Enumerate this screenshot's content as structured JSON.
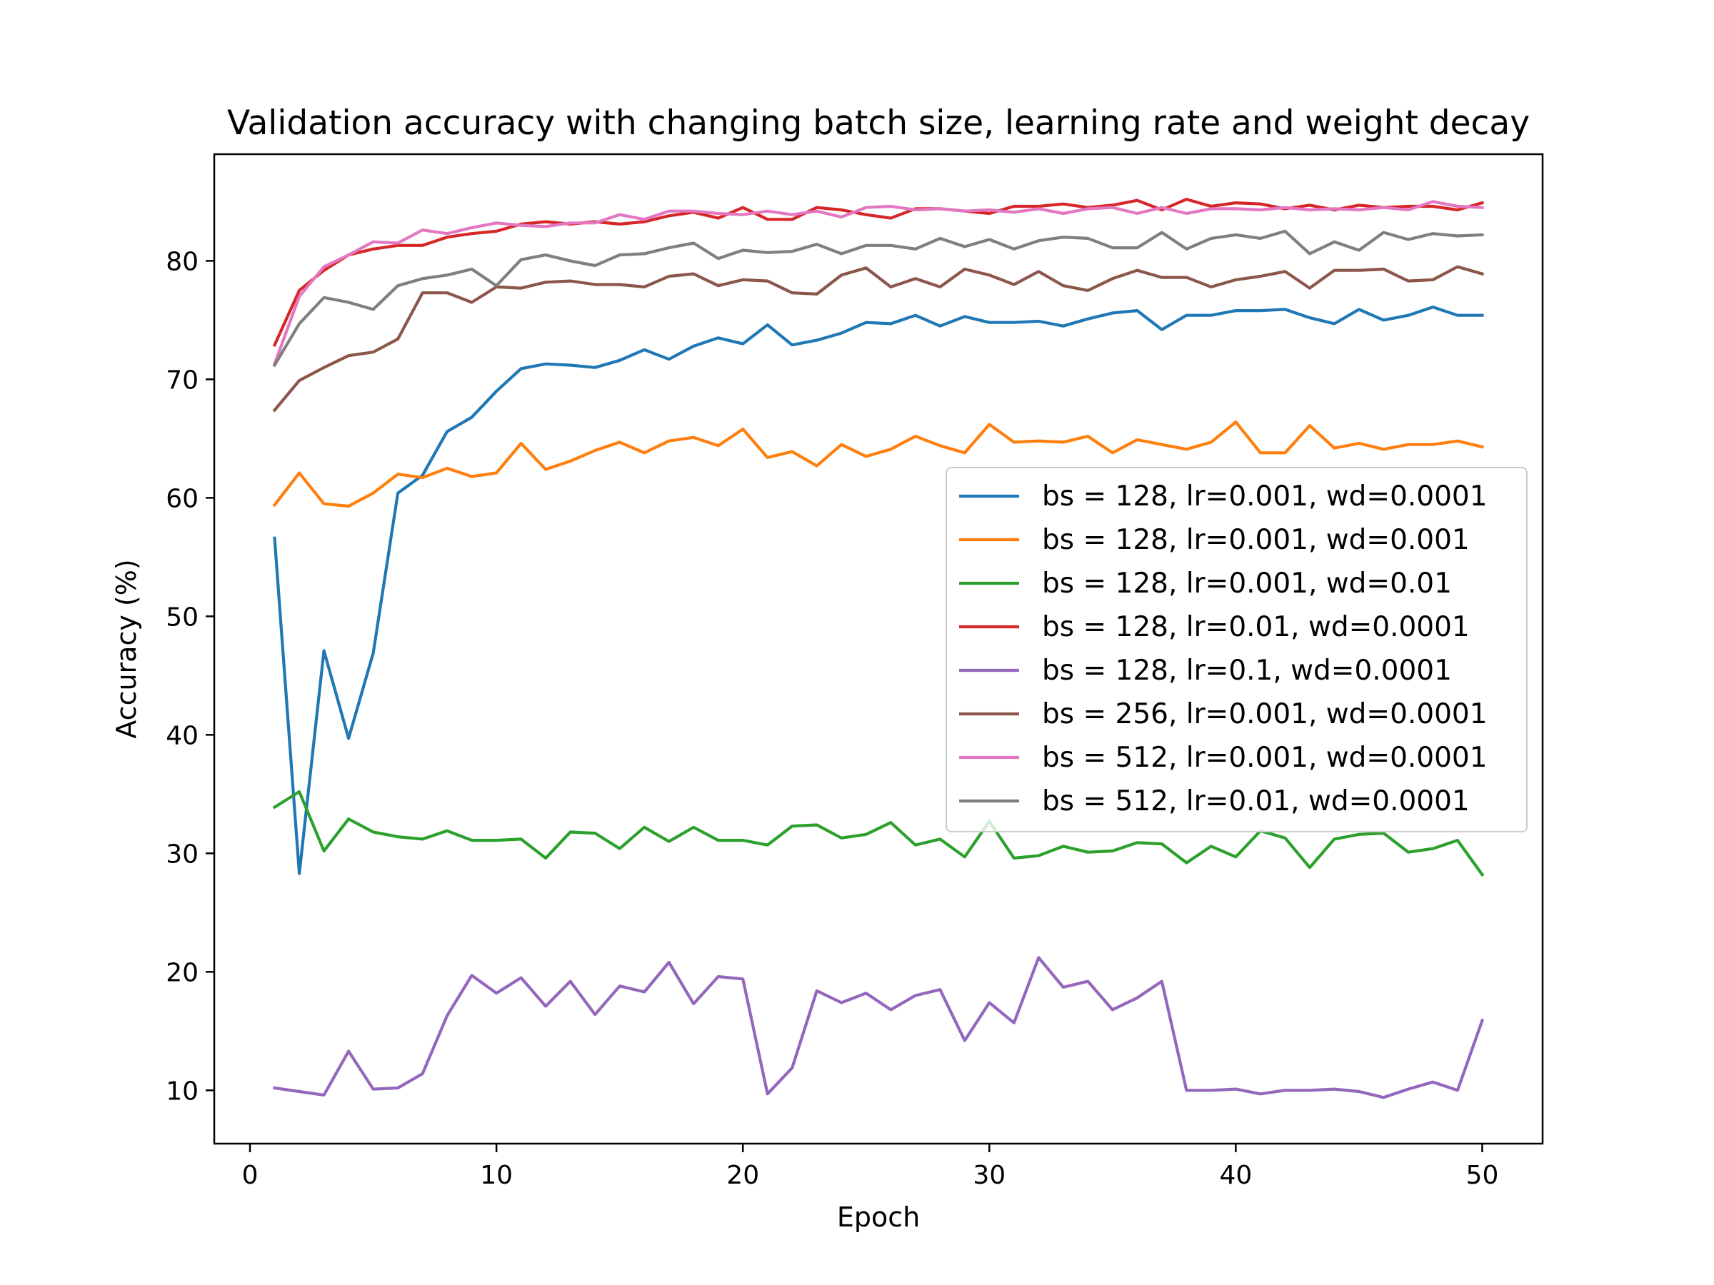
{
  "chart_data": {
    "type": "line",
    "title": "Validation accuracy with changing batch size, learning rate and weight decay",
    "xlabel": "Epoch",
    "ylabel": "Accuracy (%)",
    "xlim": [
      -1.45,
      52.45
    ],
    "ylim": [
      5.5,
      89.0
    ],
    "xticks": [
      0,
      10,
      20,
      30,
      40,
      50
    ],
    "yticks": [
      10,
      20,
      30,
      40,
      50,
      60,
      70,
      80
    ],
    "grid": false,
    "legend_position": "center-right",
    "x": [
      1,
      2,
      3,
      4,
      5,
      6,
      7,
      8,
      9,
      10,
      11,
      12,
      13,
      14,
      15,
      16,
      17,
      18,
      19,
      20,
      21,
      22,
      23,
      24,
      25,
      26,
      27,
      28,
      29,
      30,
      31,
      32,
      33,
      34,
      35,
      36,
      37,
      38,
      39,
      40,
      41,
      42,
      43,
      44,
      45,
      46,
      47,
      48,
      49,
      50
    ],
    "series": [
      {
        "name": "bs = 128, lr=0.001, wd=0.0001",
        "color": "#1f77b4",
        "values": [
          56.6,
          28.3,
          47.1,
          39.7,
          46.9,
          60.4,
          61.9,
          65.6,
          66.8,
          69.0,
          70.9,
          71.3,
          71.2,
          71.0,
          71.6,
          72.5,
          71.7,
          72.8,
          73.5,
          73.0,
          74.6,
          72.9,
          73.3,
          73.9,
          74.8,
          74.7,
          75.4,
          74.5,
          75.3,
          74.8,
          74.8,
          74.9,
          74.5,
          75.1,
          75.6,
          75.8,
          74.2,
          75.4,
          75.4,
          75.8,
          75.8,
          75.9,
          75.2,
          74.7,
          75.9,
          75.0,
          75.4,
          76.1,
          75.4,
          75.4
        ]
      },
      {
        "name": "bs = 128, lr=0.001, wd=0.001",
        "color": "#ff7f0e",
        "values": [
          59.4,
          62.1,
          59.5,
          59.3,
          60.4,
          62.0,
          61.7,
          62.5,
          61.8,
          62.1,
          64.6,
          62.4,
          63.1,
          64.0,
          64.7,
          63.8,
          64.8,
          65.1,
          64.4,
          65.8,
          63.4,
          63.9,
          62.7,
          64.5,
          63.5,
          64.1,
          65.2,
          64.4,
          63.8,
          66.2,
          64.7,
          64.8,
          64.7,
          65.2,
          63.8,
          64.9,
          64.5,
          64.1,
          64.7,
          66.4,
          63.8,
          63.8,
          66.1,
          64.2,
          64.6,
          64.1,
          64.5,
          64.5,
          64.8,
          64.3
        ]
      },
      {
        "name": "bs = 128, lr=0.001, wd=0.01",
        "color": "#2ca02c",
        "values": [
          33.9,
          35.2,
          30.2,
          32.9,
          31.8,
          31.4,
          31.2,
          31.9,
          31.1,
          31.1,
          31.2,
          29.6,
          31.8,
          31.7,
          30.4,
          32.2,
          31.0,
          32.2,
          31.1,
          31.1,
          30.7,
          32.3,
          32.4,
          31.3,
          31.6,
          32.6,
          30.7,
          31.2,
          29.7,
          32.7,
          29.6,
          29.8,
          30.6,
          30.1,
          30.2,
          30.9,
          30.8,
          29.2,
          30.6,
          29.7,
          31.9,
          31.3,
          28.8,
          31.2,
          31.6,
          31.7,
          30.1,
          30.4,
          31.1,
          28.2
        ]
      },
      {
        "name": "bs = 128, lr=0.01, wd=0.0001",
        "color": "#d62728",
        "values": [
          72.9,
          77.5,
          79.2,
          80.5,
          81.0,
          81.3,
          81.3,
          82.0,
          82.3,
          82.5,
          83.1,
          83.3,
          83.1,
          83.3,
          83.1,
          83.3,
          83.8,
          84.1,
          83.6,
          84.5,
          83.5,
          83.5,
          84.5,
          84.3,
          83.9,
          83.6,
          84.4,
          84.4,
          84.2,
          84.0,
          84.6,
          84.6,
          84.8,
          84.5,
          84.7,
          85.1,
          84.3,
          85.2,
          84.6,
          84.9,
          84.8,
          84.4,
          84.7,
          84.3,
          84.7,
          84.5,
          84.6,
          84.6,
          84.3,
          84.9
        ]
      },
      {
        "name": "bs = 128, lr=0.1, wd=0.0001",
        "color": "#9467bd",
        "values": [
          10.2,
          9.9,
          9.6,
          13.3,
          10.1,
          10.2,
          11.4,
          16.3,
          19.7,
          18.2,
          19.5,
          17.1,
          19.2,
          16.4,
          18.8,
          18.3,
          20.8,
          17.3,
          19.6,
          19.4,
          9.7,
          11.9,
          18.4,
          17.4,
          18.2,
          16.8,
          18.0,
          18.5,
          14.2,
          17.4,
          15.7,
          21.2,
          18.7,
          19.2,
          16.8,
          17.8,
          19.2,
          10.0,
          10.0,
          10.1,
          9.7,
          10.0,
          10.0,
          10.1,
          9.9,
          9.4,
          10.1,
          10.7,
          10.0,
          15.9
        ]
      },
      {
        "name": "bs = 256, lr=0.001, wd=0.0001",
        "color": "#8c564b",
        "values": [
          67.4,
          69.9,
          71.0,
          72.0,
          72.3,
          73.4,
          77.3,
          77.3,
          76.5,
          77.8,
          77.7,
          78.2,
          78.3,
          78.0,
          78.0,
          77.8,
          78.7,
          78.9,
          77.9,
          78.4,
          78.3,
          77.3,
          77.2,
          78.8,
          79.4,
          77.8,
          78.5,
          77.8,
          79.3,
          78.8,
          78.0,
          79.1,
          77.9,
          77.5,
          78.5,
          79.2,
          78.6,
          78.6,
          77.8,
          78.4,
          78.7,
          79.1,
          77.7,
          79.2,
          79.2,
          79.3,
          78.3,
          78.4,
          79.5,
          78.9
        ]
      },
      {
        "name": "bs = 512, lr=0.001, wd=0.0001",
        "color": "#e377c2",
        "values": [
          71.3,
          77.0,
          79.5,
          80.5,
          81.6,
          81.5,
          82.6,
          82.3,
          82.8,
          83.2,
          83.0,
          82.9,
          83.2,
          83.2,
          83.9,
          83.5,
          84.2,
          84.2,
          84.0,
          83.9,
          84.2,
          83.9,
          84.2,
          83.7,
          84.5,
          84.6,
          84.3,
          84.4,
          84.2,
          84.3,
          84.1,
          84.4,
          84.0,
          84.4,
          84.5,
          84.0,
          84.5,
          84.0,
          84.4,
          84.4,
          84.3,
          84.5,
          84.3,
          84.4,
          84.3,
          84.5,
          84.3,
          85.0,
          84.6,
          84.5
        ]
      },
      {
        "name": "bs = 512, lr=0.01, wd=0.0001",
        "color": "#7f7f7f",
        "values": [
          71.2,
          74.7,
          76.9,
          76.5,
          75.9,
          77.9,
          78.5,
          78.8,
          79.3,
          77.9,
          80.1,
          80.5,
          80.0,
          79.6,
          80.5,
          80.6,
          81.1,
          81.5,
          80.2,
          80.9,
          80.7,
          80.8,
          81.4,
          80.6,
          81.3,
          81.3,
          81.0,
          81.9,
          81.2,
          81.8,
          81.0,
          81.7,
          82.0,
          81.9,
          81.1,
          81.1,
          82.4,
          81.0,
          81.9,
          82.2,
          81.9,
          82.5,
          80.6,
          81.6,
          80.9,
          82.4,
          81.8,
          82.3,
          82.1,
          82.2
        ]
      }
    ]
  }
}
